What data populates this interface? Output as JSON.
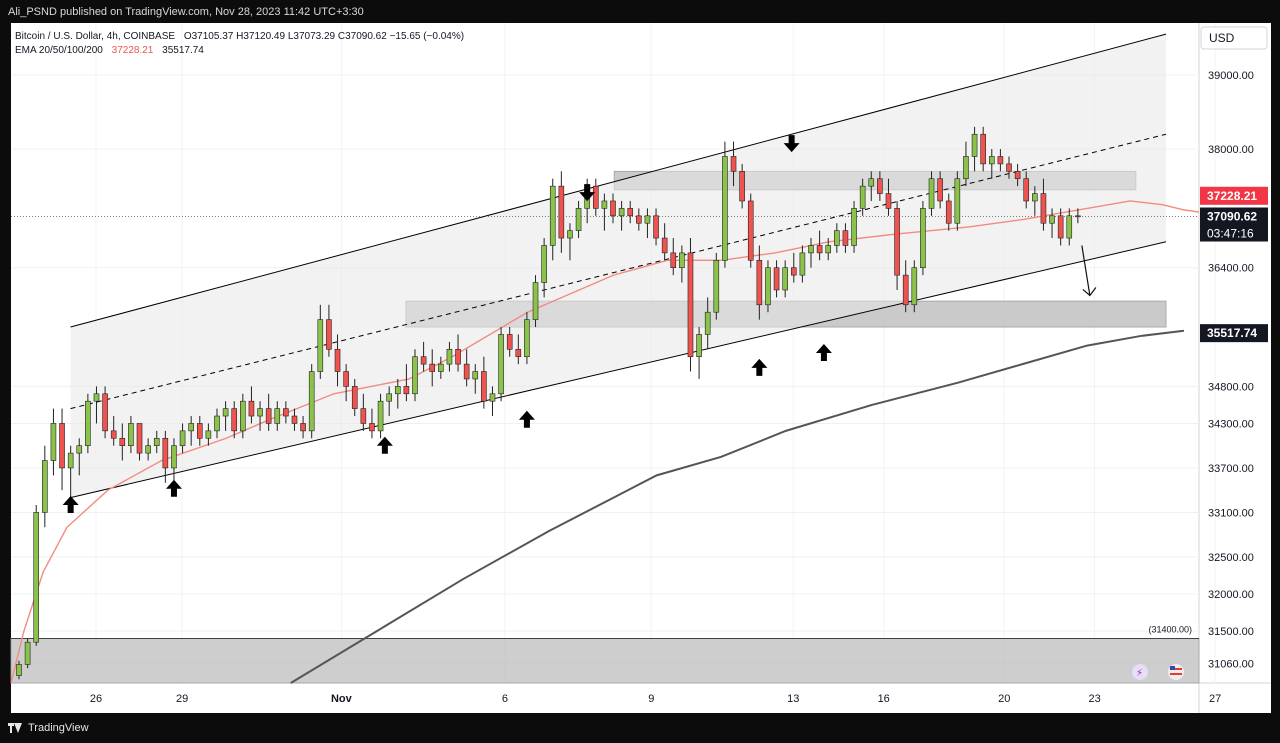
{
  "publisher": "Ali_PSND published on TradingView.com, Nov 28, 2023 11:42 UTC+3:30",
  "legend": {
    "symbol": "Bitcoin / U.S. Dollar, 4h, COINBASE",
    "ohlc": "O37105.37 H37120.49 L37073.29 C37090.62 −15.65 (−0.04%)",
    "ema_label": "EMA 20/50/100/200",
    "ema_value1": "37228.21",
    "ema_value2": "35517.74"
  },
  "currency_button": "USD",
  "footer_brand": "TradingView",
  "colors": {
    "up": "#26a69a",
    "up_body": "#8bc34a",
    "down": "#ef5350",
    "ema_fast": "#f28b82",
    "ema_slow": "#555555",
    "zone": "#bdbdbd",
    "channel": "#000000"
  },
  "chart_data": {
    "type": "candlestick",
    "ylim": [
      30800,
      39700
    ],
    "y_ticks": [
      39000,
      38000,
      36400,
      34800,
      34300,
      33700,
      33100,
      32500,
      32000,
      31500,
      31060
    ],
    "x_ticks": [
      "26",
      "29",
      "Nov",
      "6",
      "9",
      "13",
      "16",
      "20",
      "23",
      "27"
    ],
    "price_labels": {
      "ema_fast": "37228.21",
      "last_price": "37090.62",
      "countdown": "03:47:16",
      "ema_slow": "35517.74",
      "level_note": "(31400.00)"
    },
    "support_level": 31400,
    "ema_fast_series": [
      [
        0,
        30800
      ],
      [
        6,
        31500
      ],
      [
        15,
        32300
      ],
      [
        26,
        32900
      ],
      [
        45,
        33400
      ],
      [
        70,
        33800
      ],
      [
        100,
        34100
      ],
      [
        120,
        34350
      ],
      [
        150,
        34700
      ],
      [
        185,
        34900
      ],
      [
        205,
        35200
      ],
      [
        240,
        35800
      ],
      [
        280,
        36300
      ],
      [
        305,
        36500
      ],
      [
        330,
        36500
      ],
      [
        355,
        36600
      ],
      [
        380,
        36750
      ],
      [
        410,
        36850
      ],
      [
        445,
        36950
      ],
      [
        470,
        37050
      ],
      [
        500,
        37200
      ],
      [
        520,
        37300
      ],
      [
        535,
        37250
      ],
      [
        545,
        37180
      ],
      [
        552,
        37150
      ]
    ],
    "ema_slow_series": [
      [
        130,
        30800
      ],
      [
        170,
        31500
      ],
      [
        210,
        32200
      ],
      [
        250,
        32850
      ],
      [
        280,
        33300
      ],
      [
        300,
        33600
      ],
      [
        330,
        33850
      ],
      [
        360,
        34200
      ],
      [
        400,
        34550
      ],
      [
        440,
        34850
      ],
      [
        470,
        35100
      ],
      [
        500,
        35350
      ],
      [
        525,
        35480
      ],
      [
        545,
        35550
      ]
    ],
    "channel": {
      "lower": [
        [
          10,
          33300
        ],
        [
          552,
          36750
        ]
      ],
      "upper": [
        [
          10,
          35600
        ],
        [
          552,
          39550
        ]
      ],
      "mid": [
        [
          10,
          34500
        ],
        [
          552,
          38200
        ]
      ]
    },
    "zones": [
      {
        "x0": 144,
        "x1": 552,
        "y0": 35600,
        "y1": 35950
      },
      {
        "x0": 264,
        "x1": 538,
        "y0": 37450,
        "y1": 37700
      },
      {
        "x0": 0,
        "x1": 552,
        "y0": 30800,
        "y1": 31400
      }
    ],
    "arrows": [
      {
        "x": 24,
        "y": 33200,
        "dir": "up"
      },
      {
        "x": 72,
        "y": 33420,
        "dir": "up"
      },
      {
        "x": 170,
        "y": 34000,
        "dir": "up"
      },
      {
        "x": 236,
        "y": 34350,
        "dir": "up"
      },
      {
        "x": 264,
        "y": 37420,
        "dir": "down"
      },
      {
        "x": 344,
        "y": 35050,
        "dir": "up"
      },
      {
        "x": 359,
        "y": 38080,
        "dir": "down"
      },
      {
        "x": 374,
        "y": 35250,
        "dir": "up"
      }
    ],
    "candles": [
      [
        0,
        30900,
        31100,
        30850,
        31050
      ],
      [
        4,
        31050,
        31400,
        31000,
        31350
      ],
      [
        8,
        31350,
        33200,
        31300,
        33100
      ],
      [
        12,
        33100,
        34000,
        32900,
        33800
      ],
      [
        16,
        33800,
        34500,
        33600,
        34300
      ],
      [
        20,
        34300,
        34500,
        33400,
        33700
      ],
      [
        24,
        33700,
        34000,
        33300,
        33900
      ],
      [
        28,
        33900,
        34100,
        33600,
        34000
      ],
      [
        32,
        34000,
        34700,
        33900,
        34600
      ],
      [
        36,
        34600,
        34800,
        34300,
        34700
      ],
      [
        40,
        34700,
        34800,
        34100,
        34200
      ],
      [
        44,
        34200,
        34400,
        34000,
        34100
      ],
      [
        48,
        34100,
        34300,
        33800,
        34000
      ],
      [
        52,
        34000,
        34400,
        33900,
        34300
      ],
      [
        56,
        34300,
        34300,
        33800,
        33900
      ],
      [
        60,
        33900,
        34100,
        33800,
        34000
      ],
      [
        64,
        34000,
        34200,
        33900,
        34100
      ],
      [
        68,
        34100,
        34200,
        33500,
        33700
      ],
      [
        72,
        33700,
        34100,
        33500,
        34000
      ],
      [
        76,
        34000,
        34300,
        33900,
        34200
      ],
      [
        80,
        34200,
        34400,
        34000,
        34300
      ],
      [
        84,
        34300,
        34400,
        34000,
        34100
      ],
      [
        88,
        34100,
        34300,
        34000,
        34200
      ],
      [
        92,
        34200,
        34500,
        34100,
        34400
      ],
      [
        96,
        34400,
        34600,
        34200,
        34500
      ],
      [
        100,
        34500,
        34600,
        34100,
        34200
      ],
      [
        104,
        34200,
        34700,
        34100,
        34600
      ],
      [
        108,
        34600,
        34800,
        34300,
        34400
      ],
      [
        112,
        34400,
        34600,
        34200,
        34500
      ],
      [
        116,
        34500,
        34700,
        34200,
        34300
      ],
      [
        120,
        34300,
        34600,
        34200,
        34500
      ],
      [
        124,
        34500,
        34600,
        34300,
        34400
      ],
      [
        128,
        34400,
        34500,
        34200,
        34300
      ],
      [
        132,
        34300,
        34400,
        34100,
        34200
      ],
      [
        136,
        34200,
        35100,
        34100,
        35000
      ],
      [
        140,
        35000,
        35900,
        34900,
        35700
      ],
      [
        144,
        35700,
        35900,
        35200,
        35300
      ],
      [
        148,
        35300,
        35500,
        34800,
        35000
      ],
      [
        152,
        35000,
        35100,
        34600,
        34800
      ],
      [
        156,
        34800,
        34900,
        34400,
        34500
      ],
      [
        160,
        34500,
        34700,
        34200,
        34300
      ],
      [
        164,
        34300,
        34500,
        34100,
        34200
      ],
      [
        168,
        34200,
        34700,
        34100,
        34600
      ],
      [
        172,
        34600,
        34800,
        34400,
        34700
      ],
      [
        176,
        34700,
        34900,
        34500,
        34800
      ],
      [
        180,
        34800,
        35100,
        34600,
        34700
      ],
      [
        184,
        34700,
        35300,
        34600,
        35200
      ],
      [
        188,
        35200,
        35400,
        35000,
        35100
      ],
      [
        192,
        35100,
        35300,
        34800,
        35000
      ],
      [
        196,
        35000,
        35200,
        34900,
        35100
      ],
      [
        200,
        35100,
        35400,
        35000,
        35300
      ],
      [
        204,
        35300,
        35500,
        35000,
        35100
      ],
      [
        208,
        35100,
        35300,
        34800,
        34900
      ],
      [
        212,
        34900,
        35100,
        34700,
        35000
      ],
      [
        216,
        35000,
        35200,
        34500,
        34600
      ],
      [
        220,
        34600,
        34800,
        34400,
        34700
      ],
      [
        224,
        34700,
        35600,
        34600,
        35500
      ],
      [
        228,
        35500,
        35600,
        35200,
        35300
      ],
      [
        232,
        35300,
        35500,
        35100,
        35200
      ],
      [
        236,
        35200,
        35800,
        35100,
        35700
      ],
      [
        240,
        35700,
        36300,
        35600,
        36200
      ],
      [
        244,
        36200,
        36800,
        36000,
        36700
      ],
      [
        248,
        36700,
        37600,
        36500,
        37500
      ],
      [
        252,
        37500,
        37700,
        36600,
        36800
      ],
      [
        256,
        36800,
        37000,
        36500,
        36900
      ],
      [
        260,
        36900,
        37300,
        36800,
        37200
      ],
      [
        264,
        37200,
        37600,
        37000,
        37500
      ],
      [
        268,
        37500,
        37600,
        37100,
        37200
      ],
      [
        272,
        37200,
        37400,
        36900,
        37300
      ],
      [
        276,
        37300,
        37400,
        37000,
        37100
      ],
      [
        280,
        37100,
        37300,
        36900,
        37200
      ],
      [
        284,
        37200,
        37300,
        37000,
        37100
      ],
      [
        288,
        37100,
        37200,
        36900,
        37000
      ],
      [
        292,
        37000,
        37200,
        36800,
        37100
      ],
      [
        296,
        37100,
        37200,
        36700,
        36800
      ],
      [
        300,
        36800,
        37000,
        36500,
        36600
      ],
      [
        304,
        36600,
        36800,
        36300,
        36400
      ],
      [
        308,
        36400,
        36700,
        36200,
        36600
      ],
      [
        312,
        36600,
        36800,
        35000,
        35200
      ],
      [
        316,
        35200,
        35600,
        34900,
        35500
      ],
      [
        320,
        35500,
        36000,
        35300,
        35800
      ],
      [
        324,
        35800,
        36600,
        35700,
        36500
      ],
      [
        328,
        36500,
        38100,
        36400,
        37900
      ],
      [
        332,
        37900,
        38100,
        37500,
        37700
      ],
      [
        336,
        37700,
        37800,
        37200,
        37300
      ],
      [
        340,
        37300,
        37400,
        36400,
        36500
      ],
      [
        344,
        36500,
        36700,
        35700,
        35900
      ],
      [
        348,
        35900,
        36500,
        35800,
        36400
      ],
      [
        352,
        36400,
        36500,
        36000,
        36100
      ],
      [
        356,
        36100,
        36500,
        36000,
        36400
      ],
      [
        360,
        36400,
        36600,
        36200,
        36300
      ],
      [
        364,
        36300,
        36700,
        36200,
        36600
      ],
      [
        368,
        36600,
        36800,
        36400,
        36700
      ],
      [
        372,
        36700,
        36900,
        36500,
        36600
      ],
      [
        376,
        36600,
        36800,
        36500,
        36700
      ],
      [
        380,
        36700,
        37000,
        36600,
        36900
      ],
      [
        384,
        36900,
        37000,
        36600,
        36700
      ],
      [
        388,
        36700,
        37300,
        36600,
        37200
      ],
      [
        392,
        37200,
        37600,
        37100,
        37500
      ],
      [
        396,
        37500,
        37700,
        37300,
        37600
      ],
      [
        400,
        37600,
        37700,
        37300,
        37400
      ],
      [
        404,
        37400,
        37600,
        37100,
        37200
      ],
      [
        408,
        37200,
        37300,
        36100,
        36300
      ],
      [
        412,
        36300,
        36500,
        35800,
        35900
      ],
      [
        416,
        35900,
        36500,
        35800,
        36400
      ],
      [
        420,
        36400,
        37300,
        36300,
        37200
      ],
      [
        424,
        37200,
        37700,
        37100,
        37600
      ],
      [
        428,
        37600,
        37700,
        37200,
        37300
      ],
      [
        432,
        37300,
        37400,
        36900,
        37000
      ],
      [
        436,
        37000,
        37700,
        36900,
        37600
      ],
      [
        440,
        37600,
        38100,
        37500,
        37900
      ],
      [
        444,
        37900,
        38300,
        37700,
        38200
      ],
      [
        448,
        38200,
        38300,
        37700,
        37800
      ],
      [
        452,
        37800,
        38000,
        37600,
        37900
      ],
      [
        456,
        37900,
        38000,
        37700,
        37800
      ],
      [
        460,
        37800,
        37900,
        37600,
        37700
      ],
      [
        464,
        37700,
        37800,
        37500,
        37600
      ],
      [
        468,
        37600,
        37700,
        37200,
        37300
      ],
      [
        472,
        37300,
        37500,
        37100,
        37400
      ],
      [
        476,
        37400,
        37600,
        36900,
        37000
      ],
      [
        480,
        37000,
        37200,
        36800,
        37100
      ],
      [
        484,
        37100,
        37200,
        36700,
        36800
      ],
      [
        488,
        36800,
        37200,
        36700,
        37100
      ],
      [
        492,
        37100,
        37200,
        37000,
        37090
      ]
    ]
  }
}
